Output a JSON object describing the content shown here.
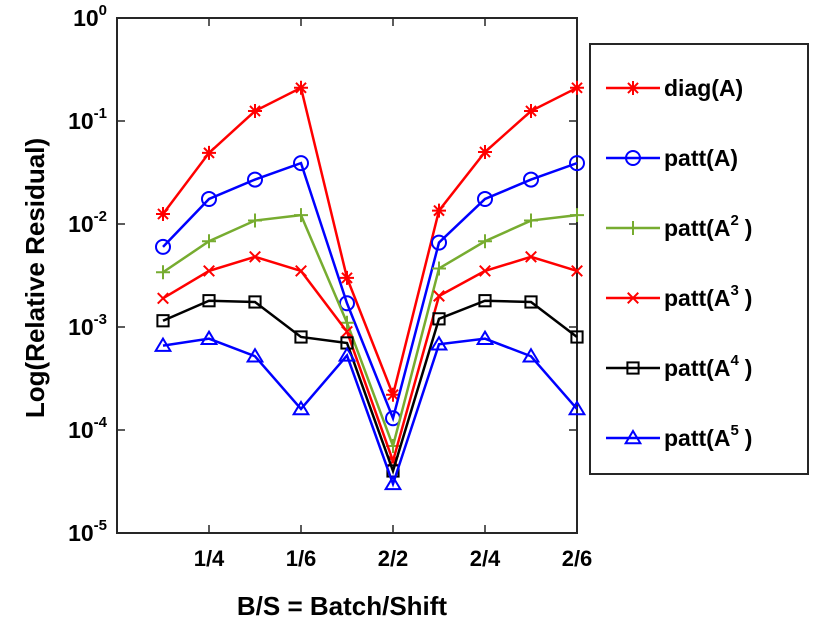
{
  "chart_data": {
    "type": "line",
    "title": "",
    "xlabel": "B/S = Batch/Shift",
    "ylabel": "Log(Relative Residual)",
    "yscale": "log",
    "ylim": [
      1e-05,
      1
    ],
    "xlim": [
      0,
      10
    ],
    "x": [
      1,
      2,
      3,
      4,
      5,
      6,
      7,
      8,
      9,
      10
    ],
    "x_ticks": [
      2,
      4,
      6,
      8,
      10
    ],
    "x_tick_labels": [
      "1/4",
      "1/6",
      "2/2",
      "2/4",
      "2/6"
    ],
    "y_ticks": [
      {
        "value": 1e-05,
        "base": "10",
        "exp": "-5"
      },
      {
        "value": 0.0001,
        "base": "10",
        "exp": "-4"
      },
      {
        "value": 0.001,
        "base": "10",
        "exp": "-3"
      },
      {
        "value": 0.01,
        "base": "10",
        "exp": "-2"
      },
      {
        "value": 0.1,
        "base": "10",
        "exp": "-1"
      },
      {
        "value": 1,
        "base": "10",
        "exp": "0"
      }
    ],
    "grid": false,
    "legend_position": "outside-right",
    "series": [
      {
        "name": "diag(A)",
        "label_main": "diag(A)",
        "label_sup": "",
        "label_tail": "",
        "color": "#ff0000",
        "marker": "asterisk",
        "values": [
          0.0125,
          0.049,
          0.125,
          0.21,
          0.003,
          0.00022,
          0.0135,
          0.05,
          0.125,
          0.21
        ]
      },
      {
        "name": "patt(A)",
        "label_main": "patt(A)",
        "label_sup": "",
        "label_tail": "",
        "color": "#0000ff",
        "marker": "circle",
        "values": [
          0.006,
          0.0175,
          0.027,
          0.039,
          0.0017,
          0.00013,
          0.0066,
          0.0175,
          0.027,
          0.039
        ]
      },
      {
        "name": "patt(A^2)",
        "label_main": "patt(A",
        "label_sup": "2",
        "label_tail": ")",
        "color": "#77ac30",
        "marker": "plus",
        "values": [
          0.0034,
          0.0068,
          0.0108,
          0.0122,
          0.0011,
          7e-05,
          0.0037,
          0.0068,
          0.0108,
          0.0122
        ]
      },
      {
        "name": "patt(A^3)",
        "label_main": "patt(A",
        "label_sup": "3",
        "label_tail": ")",
        "color": "#ff0000",
        "marker": "x",
        "values": [
          0.0019,
          0.0035,
          0.0048,
          0.0035,
          0.0009,
          5e-05,
          0.002,
          0.0035,
          0.0048,
          0.0035
        ]
      },
      {
        "name": "patt(A^4)",
        "label_main": "patt(A",
        "label_sup": "4",
        "label_tail": ")",
        "color": "#000000",
        "marker": "square",
        "values": [
          0.00115,
          0.0018,
          0.00175,
          0.0008,
          0.0007,
          4e-05,
          0.0012,
          0.0018,
          0.00175,
          0.0008
        ]
      },
      {
        "name": "patt(A^5)",
        "label_main": "patt(A",
        "label_sup": "5",
        "label_tail": ")",
        "color": "#0000ff",
        "marker": "triangle",
        "values": [
          0.00066,
          0.00077,
          0.00052,
          0.00016,
          0.00053,
          3e-05,
          0.00068,
          0.00077,
          0.00052,
          0.00016
        ]
      }
    ]
  }
}
